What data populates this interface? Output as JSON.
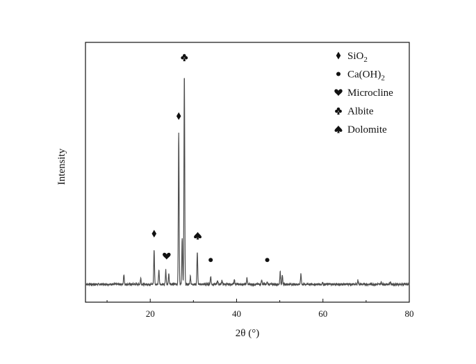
{
  "chart_data": {
    "type": "line",
    "xlabel": "2θ (°)",
    "ylabel": "Intensity",
    "xlim": [
      5,
      80
    ],
    "xticks": [
      20,
      40,
      60,
      80
    ],
    "y_ticks_shown": false,
    "grid": false,
    "legend_placement": "top-right",
    "line_color": "#4d4d4d",
    "ylim": [
      0,
      120
    ],
    "baseline": 3,
    "peaks": [
      {
        "x": 13.9,
        "y": 8
      },
      {
        "x": 17.8,
        "y": 6
      },
      {
        "x": 20.9,
        "y": 20
      },
      {
        "x": 22.0,
        "y": 10
      },
      {
        "x": 23.6,
        "y": 10
      },
      {
        "x": 24.3,
        "y": 8
      },
      {
        "x": 26.6,
        "y": 78
      },
      {
        "x": 27.4,
        "y": 26
      },
      {
        "x": 27.9,
        "y": 107
      },
      {
        "x": 29.3,
        "y": 7
      },
      {
        "x": 30.9,
        "y": 19
      },
      {
        "x": 34.0,
        "y": 7
      },
      {
        "x": 35.6,
        "y": 5
      },
      {
        "x": 36.6,
        "y": 5
      },
      {
        "x": 39.5,
        "y": 5
      },
      {
        "x": 42.4,
        "y": 6
      },
      {
        "x": 45.8,
        "y": 5
      },
      {
        "x": 47.1,
        "y": 4
      },
      {
        "x": 50.1,
        "y": 9
      },
      {
        "x": 50.6,
        "y": 7
      },
      {
        "x": 54.9,
        "y": 8
      },
      {
        "x": 59.9,
        "y": 4
      },
      {
        "x": 68.1,
        "y": 5
      },
      {
        "x": 73.5,
        "y": 4
      },
      {
        "x": 75.6,
        "y": 4
      }
    ],
    "legend": [
      {
        "symbol": "diamond",
        "label": "SiO",
        "sub": "2"
      },
      {
        "symbol": "circle",
        "label": "Ca(OH)",
        "sub": "2"
      },
      {
        "symbol": "heart",
        "label": "Microcline",
        "sub": ""
      },
      {
        "symbol": "club",
        "label": "Albite",
        "sub": ""
      },
      {
        "symbol": "spade",
        "label": "Dolomite",
        "sub": ""
      }
    ],
    "annotations": [
      {
        "symbol": "diamond",
        "x": 20.9,
        "y": 28
      },
      {
        "symbol": "heart",
        "x": 23.8,
        "y": 17
      },
      {
        "symbol": "diamond",
        "x": 26.6,
        "y": 86
      },
      {
        "symbol": "club",
        "x": 27.9,
        "y": 115
      },
      {
        "symbol": "spade",
        "x": 31.0,
        "y": 27
      },
      {
        "symbol": "circle",
        "x": 34.0,
        "y": 15
      },
      {
        "symbol": "circle",
        "x": 47.1,
        "y": 15
      }
    ]
  }
}
